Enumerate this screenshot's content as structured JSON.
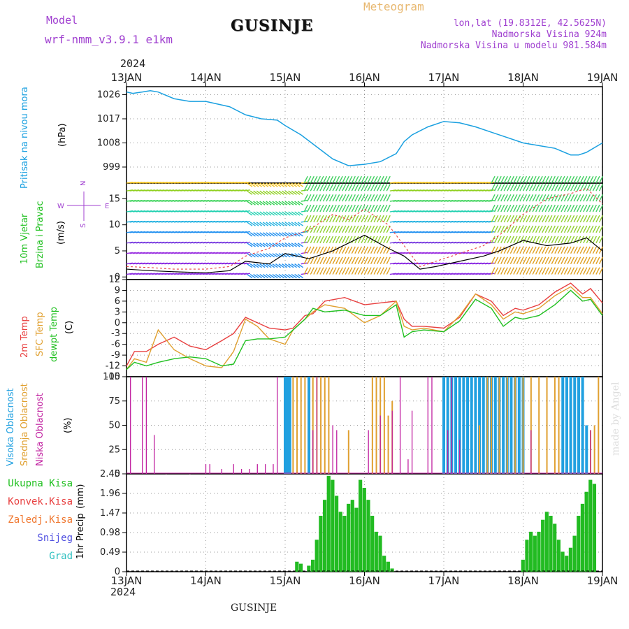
{
  "header": {
    "model_label": "Model",
    "model_name": "wrf-nmm_v3.9.1 e1km",
    "title": "GUSINJE",
    "meteogram_label": "Meteogram",
    "lonlat": "lon,lat (19.8312E, 42.5625N)",
    "altitude": "Nadmorska Visina 924m",
    "model_altitude": "Nadmorska Visina u modelu 981.584m",
    "year_top": "2024",
    "year_bottom": "2024",
    "footer": "GUSINJE",
    "watermark": "made by Angel"
  },
  "colors": {
    "pressure": "#1aa0e0",
    "temp_2m": "#e84040",
    "sfc_temp": "#e0a030",
    "dewpoint": "#20c020",
    "high_cloud": "#20a0e0",
    "mid_cloud": "#e0a030",
    "low_cloud": "#c020a0",
    "precip": "#22bb22",
    "purple_label": "#a040d0"
  },
  "chart_data": [
    {
      "type": "line",
      "name": "pressure",
      "ylabel": "Pritisak na nivou mora",
      "unit": "(hPa)",
      "yticks": [
        "999",
        "1008",
        "1017",
        "1026"
      ],
      "ylim": [
        993,
        1029
      ],
      "xticks": [
        "13JAN",
        "14JAN",
        "15JAN",
        "16JAN",
        "17JAN",
        "18JAN",
        "19JAN"
      ],
      "x": [
        0,
        0.08,
        0.2,
        0.3,
        0.4,
        0.6,
        0.8,
        1.0,
        1.3,
        1.5,
        1.7,
        1.9,
        2.0,
        2.2,
        2.4,
        2.6,
        2.8,
        3.0,
        3.2,
        3.4,
        3.5,
        3.6,
        3.8,
        4.0,
        4.2,
        4.4,
        4.6,
        4.8,
        5.0,
        5.2,
        5.4,
        5.6,
        5.7,
        5.8,
        6.0
      ],
      "series": [
        {
          "values": [
            1027,
            1026.5,
            1027,
            1027.5,
            1027,
            1024.5,
            1023.5,
            1023.5,
            1021.5,
            1018.5,
            1017,
            1016.5,
            1014.5,
            1011,
            1006.5,
            1002,
            999.5,
            1000,
            1001,
            1004,
            1008.5,
            1011,
            1014,
            1016,
            1015.5,
            1014,
            1012,
            1010,
            1008,
            1007,
            1006,
            1003.5,
            1003.5,
            1004.5,
            1008
          ]
        }
      ]
    },
    {
      "type": "line",
      "name": "wind",
      "ylabel": "10m Vjetar Brzina i Pravac",
      "unit": "(m/s)",
      "yticks": [
        "0",
        "5",
        "10",
        "15"
      ],
      "ylim": [
        -0.5,
        18
      ],
      "compass": [
        "N",
        "S",
        "W",
        "E"
      ],
      "x": [
        0,
        0.3,
        0.6,
        1.0,
        1.3,
        1.5,
        1.8,
        2.0,
        2.3,
        2.6,
        2.8,
        3.0,
        3.3,
        3.5,
        3.7,
        3.9,
        4.2,
        4.5,
        4.7,
        5.0,
        5.3,
        5.6,
        5.8,
        6.0
      ],
      "series": [
        {
          "name": "speed",
          "values": [
            1.5,
            1.2,
            1.0,
            0.8,
            1.2,
            3,
            2.5,
            4.5,
            3.5,
            5,
            6.5,
            8,
            5.5,
            4,
            1.5,
            2,
            3,
            4,
            5,
            7,
            6,
            6.5,
            7.5,
            5
          ]
        },
        {
          "name": "gust",
          "values": [
            2,
            1.8,
            1.5,
            1.5,
            2,
            4,
            5.5,
            7.5,
            9,
            12,
            11,
            13,
            10,
            6,
            2,
            3,
            4.5,
            6,
            8,
            12,
            15,
            16,
            17,
            14
          ]
        }
      ]
    },
    {
      "type": "line",
      "name": "temperature",
      "unit": "(C)",
      "yticks": [
        "-15",
        "-12",
        "-9",
        "-6",
        "-3",
        "0",
        "3",
        "6",
        "9",
        "12"
      ],
      "ylim": [
        -15,
        12
      ],
      "x": [
        0,
        0.1,
        0.25,
        0.4,
        0.6,
        0.8,
        1.0,
        1.2,
        1.35,
        1.5,
        1.65,
        1.8,
        2.0,
        2.1,
        2.25,
        2.35,
        2.5,
        2.75,
        3.0,
        3.2,
        3.4,
        3.5,
        3.6,
        3.75,
        4.0,
        4.2,
        4.4,
        4.6,
        4.75,
        4.9,
        5.0,
        5.2,
        5.4,
        5.6,
        5.75,
        5.85,
        6.0
      ],
      "series": [
        {
          "name": "2m Temp",
          "values": [
            -12,
            -8,
            -8,
            -6,
            -4,
            -6.5,
            -7.5,
            -5,
            -3,
            1.5,
            0,
            -1.5,
            -2,
            -1.5,
            2,
            2.5,
            6,
            7,
            5,
            5.5,
            6,
            1,
            -1,
            -1,
            -1.5,
            1.5,
            8,
            6,
            2,
            4,
            3.5,
            5,
            8.5,
            11,
            8,
            9.5,
            5.5
          ]
        },
        {
          "name": "SFC Temp",
          "values": [
            -13,
            -10,
            -11,
            -2,
            -7.5,
            -10,
            -12,
            -12.5,
            -8,
            1,
            -1,
            -4.5,
            -6,
            -2,
            1,
            3,
            5,
            4,
            0,
            2,
            6,
            -1,
            -2,
            -1.5,
            -2.5,
            2,
            8,
            5,
            1,
            3,
            2.5,
            4,
            7.5,
            10,
            7,
            7,
            2.5
          ]
        },
        {
          "name": "dewpt Temp",
          "values": [
            -13,
            -11,
            -12,
            -11,
            -10,
            -9.5,
            -10,
            -12,
            -11.5,
            -5,
            -4.5,
            -4.5,
            -4,
            -2,
            1,
            4,
            3,
            3.5,
            2,
            2,
            5,
            -4,
            -2.5,
            -2,
            -2.5,
            0.5,
            6.5,
            4,
            -1,
            1.5,
            1,
            2,
            5,
            9,
            6,
            6.5,
            2
          ]
        }
      ]
    },
    {
      "type": "bar",
      "name": "cloud",
      "unit": "(%)",
      "yticks": [
        "0",
        "25",
        "50",
        "75",
        "100"
      ],
      "ylim": [
        0,
        100
      ],
      "series": [
        {
          "name": "Visoka Oblacnost",
          "x": [
            2.0,
            2.03,
            2.06,
            2.3,
            4.0,
            4.05,
            4.1,
            4.15,
            4.2,
            4.25,
            4.3,
            4.35,
            4.4,
            4.45,
            4.5,
            4.55,
            4.6,
            4.65,
            4.7,
            4.75,
            4.8,
            4.85,
            4.9,
            4.95,
            5.0,
            5.5,
            5.55,
            5.6,
            5.65,
            5.7,
            5.75,
            5.8
          ],
          "values": [
            100,
            100,
            100,
            100,
            100,
            100,
            100,
            100,
            100,
            100,
            100,
            100,
            100,
            100,
            100,
            100,
            100,
            100,
            100,
            100,
            100,
            100,
            100,
            100,
            100,
            100,
            100,
            100,
            100,
            100,
            100,
            50
          ]
        },
        {
          "name": "Srednja Oblacnost",
          "x": [
            2.1,
            2.15,
            2.2,
            2.25,
            2.35,
            2.4,
            2.45,
            2.5,
            2.55,
            2.8,
            3.1,
            3.15,
            3.2,
            3.25,
            3.3,
            3.35,
            4.45,
            4.55,
            4.6,
            4.7,
            4.8,
            4.9,
            5.0,
            5.1,
            5.2,
            5.3,
            5.4,
            5.45,
            5.85,
            5.9,
            5.95
          ],
          "values": [
            100,
            100,
            100,
            100,
            100,
            100,
            100,
            100,
            100,
            45,
            100,
            100,
            100,
            100,
            60,
            75,
            50,
            100,
            100,
            100,
            100,
            100,
            100,
            100,
            100,
            100,
            100,
            100,
            45,
            50,
            100
          ]
        },
        {
          "name": "Niska Oblacnost",
          "x": [
            0.05,
            0.2,
            0.25,
            0.35,
            0.5,
            0.8,
            1.0,
            1.05,
            1.2,
            1.35,
            1.45,
            1.55,
            1.65,
            1.75,
            1.85,
            1.9,
            2.35,
            2.4,
            2.6,
            2.65,
            3.05,
            3.2,
            3.35,
            3.45,
            3.55,
            3.6,
            3.8,
            3.85,
            4.05,
            4.1,
            4.2,
            5.1,
            5.85
          ],
          "values": [
            100,
            100,
            100,
            40,
            0,
            0,
            10,
            10,
            5,
            10,
            5,
            5,
            10,
            10,
            10,
            100,
            45,
            100,
            50,
            45,
            45,
            60,
            65,
            100,
            15,
            65,
            100,
            100,
            45,
            100,
            35,
            45,
            45
          ]
        }
      ]
    },
    {
      "type": "bar",
      "name": "precip",
      "ylabel": "1hr Precip",
      "unit": "(mm)",
      "legend": [
        "Ukupna Kisa",
        "Konvek.Kisa",
        "Zaledj.Kisa",
        "Snijeg",
        "Grad"
      ],
      "yticks": [
        "0",
        "0.49",
        "0.98",
        "1.47",
        "1.96",
        "2.45"
      ],
      "ylim": [
        0,
        2.45
      ],
      "x": [
        2.15,
        2.2,
        2.3,
        2.35,
        2.4,
        2.45,
        2.5,
        2.55,
        2.6,
        2.65,
        2.7,
        2.75,
        2.8,
        2.85,
        2.9,
        2.95,
        3.0,
        3.05,
        3.1,
        3.15,
        3.2,
        3.25,
        3.3,
        3.35,
        5.0,
        5.05,
        5.1,
        5.15,
        5.2,
        5.25,
        5.3,
        5.35,
        5.4,
        5.45,
        5.5,
        5.55,
        5.6,
        5.65,
        5.7,
        5.75,
        5.8,
        5.85,
        5.9
      ],
      "values": [
        0.25,
        0.2,
        0.15,
        0.3,
        0.8,
        1.4,
        1.8,
        2.4,
        2.3,
        1.9,
        1.5,
        1.4,
        1.7,
        1.8,
        1.6,
        2.3,
        2.1,
        1.8,
        1.4,
        1.0,
        0.9,
        0.4,
        0.25,
        0.08,
        0.3,
        0.8,
        1.0,
        0.9,
        1.0,
        1.3,
        1.5,
        1.4,
        1.2,
        0.8,
        0.5,
        0.4,
        0.6,
        0.9,
        1.4,
        1.7,
        2.0,
        2.3,
        2.2
      ]
    }
  ]
}
